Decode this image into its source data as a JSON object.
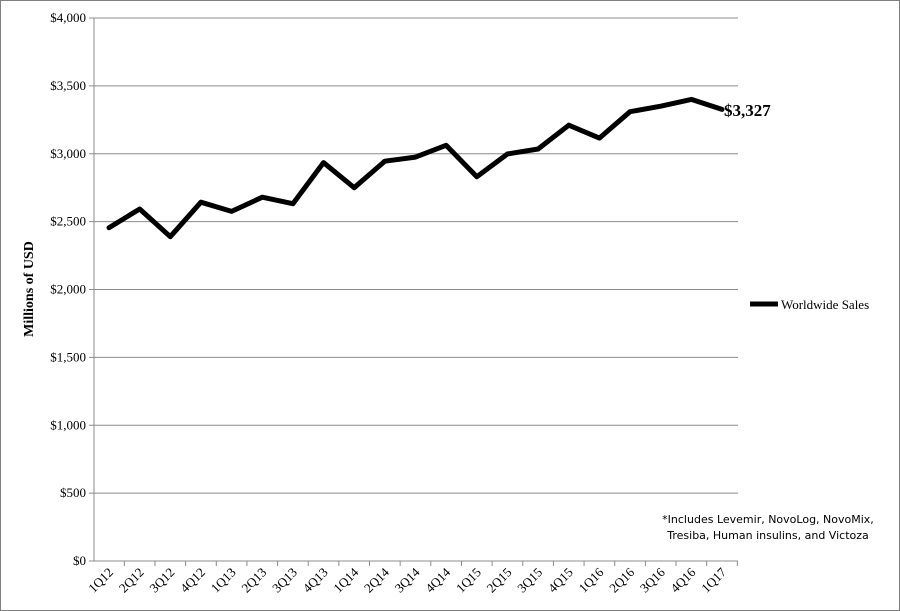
{
  "chart_data": {
    "type": "line",
    "title": "",
    "xlabel": "",
    "ylabel": "Millions of USD",
    "categories": [
      "1Q12",
      "2Q12",
      "3Q12",
      "4Q12",
      "1Q13",
      "2Q13",
      "3Q13",
      "4Q13",
      "1Q14",
      "2Q14",
      "3Q14",
      "4Q14",
      "1Q15",
      "2Q15",
      "3Q15",
      "4Q15",
      "1Q16",
      "2Q16",
      "3Q16",
      "4Q16",
      "1Q17"
    ],
    "series": [
      {
        "name": "Worldwide Sales",
        "color": "#000000",
        "values": [
          2455,
          2593,
          2389,
          2643,
          2575,
          2680,
          2632,
          2935,
          2750,
          2945,
          2975,
          3062,
          2830,
          2998,
          3035,
          3210,
          3115,
          3310,
          3350,
          3400,
          3327
        ]
      }
    ],
    "ylim": [
      0,
      4000
    ],
    "yticks": [
      "$0",
      "$500",
      "$1,000",
      "$1,500",
      "$2,000",
      "$2,500",
      "$3,000",
      "$3,500",
      "$4,000"
    ],
    "grid": "horizontal",
    "legend_position": "right",
    "end_label": "$3,327",
    "annotation": "*Includes Levemir, NovoLog, NovoMix,\nTresiba, Human insulins, and Victoza"
  }
}
